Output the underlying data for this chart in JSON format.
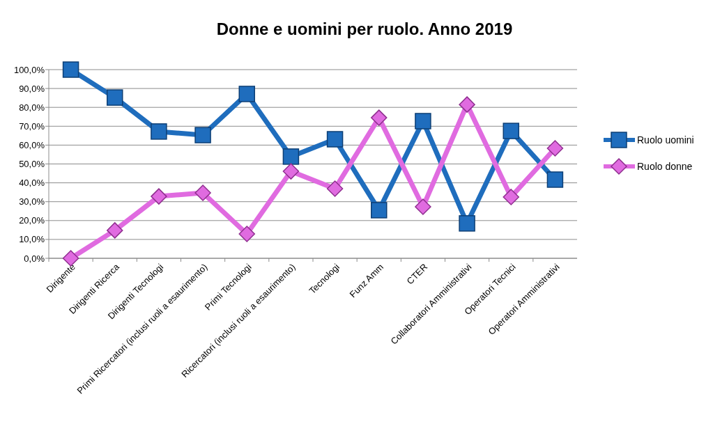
{
  "chart_data": {
    "type": "line",
    "title": "Donne e uomini per ruolo. Anno 2019",
    "categories": [
      "Dirigente",
      "Dirigenti Ricerca",
      "Dirigenti Tecnologi",
      "Primi Ricercatori (inclusi ruoli a esaurimento)",
      "Primi Tecnologi",
      "Ricercatori (inclusi ruoli a esaurimento)",
      "Tecnologi",
      "Funz Amm",
      "CTER",
      "Collaboratori Amministrativi",
      "Operatori Tecnici",
      "Operatori Amministrativi"
    ],
    "series": [
      {
        "name": "Ruolo uomini",
        "color": "#1f6dbd",
        "marker": "square",
        "values": [
          100,
          85.2,
          67.2,
          65.3,
          87.1,
          53.9,
          63.1,
          25.5,
          72.7,
          18.5,
          67.5,
          41.7
        ]
      },
      {
        "name": "Ruolo donne",
        "color": "#e06be0",
        "marker": "diamond",
        "values": [
          0,
          14.8,
          32.8,
          34.7,
          12.9,
          46.1,
          36.9,
          74.5,
          27.3,
          81.5,
          32.5,
          58.3
        ]
      }
    ],
    "ylim": [
      0,
      100
    ],
    "yticks": [
      {
        "value": 0,
        "label": "0,0%"
      },
      {
        "value": 10,
        "label": "10,0%"
      },
      {
        "value": 20,
        "label": "20,0%"
      },
      {
        "value": 30,
        "label": "30,0%"
      },
      {
        "value": 40,
        "label": "40,0%"
      },
      {
        "value": 50,
        "label": "50,0%"
      },
      {
        "value": 60,
        "label": "60,0%"
      },
      {
        "value": 70,
        "label": "70,0%"
      },
      {
        "value": 80,
        "label": "80,0%"
      },
      {
        "value": 90,
        "label": "90,0%"
      },
      {
        "value": 100,
        "label": "100,0%"
      }
    ],
    "grid": "y",
    "legend": "right",
    "line_style": "solid"
  }
}
